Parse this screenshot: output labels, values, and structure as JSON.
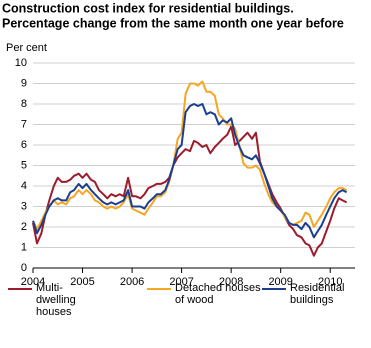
{
  "chart_data": {
    "type": "line",
    "title": "Construction cost index for residential buildings.",
    "subtitle": "Percentage change from the same month one year before",
    "y_label": "Per cent",
    "x": [
      2004,
      2004.08,
      2004.17,
      2004.25,
      2004.33,
      2004.42,
      2004.5,
      2004.58,
      2004.67,
      2004.75,
      2004.83,
      2004.92,
      2005,
      2005.08,
      2005.17,
      2005.25,
      2005.33,
      2005.42,
      2005.5,
      2005.58,
      2005.67,
      2005.75,
      2005.83,
      2005.92,
      2006,
      2006.08,
      2006.17,
      2006.25,
      2006.33,
      2006.42,
      2006.5,
      2006.58,
      2006.67,
      2006.75,
      2006.83,
      2006.92,
      2007,
      2007.08,
      2007.17,
      2007.25,
      2007.33,
      2007.42,
      2007.5,
      2007.58,
      2007.67,
      2007.75,
      2007.83,
      2007.92,
      2008,
      2008.08,
      2008.17,
      2008.25,
      2008.33,
      2008.42,
      2008.5,
      2008.58,
      2008.67,
      2008.75,
      2008.83,
      2008.92,
      2009,
      2009.08,
      2009.17,
      2009.25,
      2009.33,
      2009.42,
      2009.5,
      2009.58,
      2009.67,
      2009.75,
      2009.83,
      2009.92,
      2010,
      2010.08,
      2010.17,
      2010.25,
      2010.33
    ],
    "series": [
      {
        "name": "Multi-dwelling houses",
        "color": "#9c1c2e",
        "values": [
          2.2,
          1.2,
          1.7,
          2.6,
          3.3,
          4.0,
          4.4,
          4.2,
          4.2,
          4.3,
          4.5,
          4.6,
          4.4,
          4.6,
          4.3,
          4.2,
          3.8,
          3.6,
          3.4,
          3.6,
          3.5,
          3.6,
          3.5,
          4.4,
          3.5,
          3.5,
          3.4,
          3.6,
          3.9,
          4.0,
          4.1,
          4.1,
          4.2,
          4.4,
          5.0,
          5.4,
          5.6,
          5.8,
          5.7,
          6.2,
          6.1,
          5.9,
          6.0,
          5.6,
          5.9,
          6.1,
          6.3,
          6.5,
          6.9,
          6.0,
          6.2,
          6.4,
          6.6,
          6.3,
          6.6,
          5.2,
          4.6,
          4.1,
          3.6,
          3.2,
          2.9,
          2.5,
          2.1,
          1.9,
          1.6,
          1.5,
          1.2,
          1.1,
          0.6,
          1.0,
          1.2,
          1.8,
          2.3,
          2.9,
          3.4,
          3.3,
          3.2
        ]
      },
      {
        "name": "Detached houses of wood",
        "color": "#f5a623",
        "values": [
          2.3,
          1.9,
          2.3,
          2.7,
          3.0,
          3.3,
          3.1,
          3.2,
          3.1,
          3.4,
          3.5,
          3.8,
          3.6,
          3.8,
          3.6,
          3.3,
          3.2,
          3.0,
          2.9,
          3.0,
          2.9,
          3.0,
          3.2,
          3.6,
          2.9,
          2.8,
          2.7,
          2.6,
          2.9,
          3.2,
          3.5,
          3.5,
          3.7,
          4.2,
          5.0,
          6.3,
          6.6,
          8.5,
          9.0,
          9.0,
          8.9,
          9.1,
          8.6,
          8.6,
          8.4,
          7.5,
          7.3,
          7.0,
          7.0,
          6.8,
          5.9,
          5.1,
          4.9,
          4.9,
          5.0,
          4.8,
          4.1,
          3.6,
          3.2,
          3.0,
          2.8,
          2.5,
          2.2,
          2.1,
          2.2,
          2.3,
          2.7,
          2.6,
          2.0,
          2.3,
          2.6,
          3.0,
          3.4,
          3.7,
          3.9,
          3.9,
          3.8
        ]
      },
      {
        "name": "Residential buildings",
        "color": "#1a3f8f",
        "values": [
          2.3,
          1.7,
          2.1,
          2.6,
          3.0,
          3.3,
          3.4,
          3.3,
          3.3,
          3.7,
          3.8,
          4.1,
          3.9,
          4.1,
          3.8,
          3.6,
          3.4,
          3.2,
          3.1,
          3.2,
          3.1,
          3.2,
          3.3,
          3.8,
          3.0,
          3.0,
          3.0,
          2.9,
          3.2,
          3.4,
          3.6,
          3.6,
          3.8,
          4.3,
          5.0,
          5.8,
          6.0,
          7.6,
          7.9,
          8.0,
          7.9,
          8.0,
          7.5,
          7.6,
          7.5,
          7.0,
          7.2,
          7.1,
          7.3,
          6.5,
          5.9,
          5.5,
          5.4,
          5.3,
          5.5,
          5.1,
          4.6,
          4.0,
          3.4,
          3.0,
          2.8,
          2.6,
          2.2,
          2.1,
          2.1,
          1.9,
          2.2,
          2.0,
          1.5,
          1.8,
          2.1,
          2.6,
          3.0,
          3.4,
          3.7,
          3.8,
          3.7
        ]
      }
    ],
    "xlim": [
      2004,
      2010.5
    ],
    "xticks": [
      2004,
      2005,
      2006,
      2007,
      2008,
      2009,
      2010
    ],
    "ylim": [
      0,
      10
    ],
    "yticks": [
      0,
      1,
      2,
      3,
      4,
      5,
      6,
      7,
      8,
      9,
      10
    ],
    "grid": true
  }
}
